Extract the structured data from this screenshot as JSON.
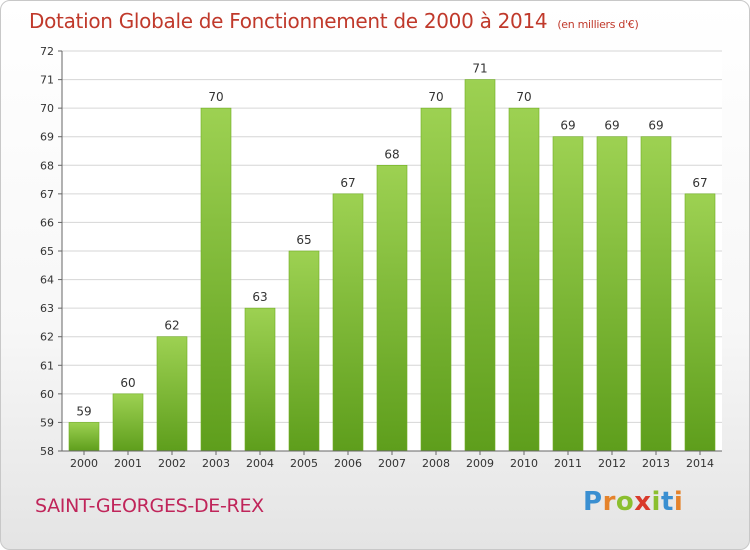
{
  "chart_data": {
    "type": "bar",
    "title": "Dotation Globale de Fonctionnement de 2000 à 2014",
    "unit": "(en milliers d'€)",
    "categories": [
      "2000",
      "2001",
      "2002",
      "2003",
      "2004",
      "2005",
      "2006",
      "2007",
      "2008",
      "2009",
      "2010",
      "2011",
      "2012",
      "2013",
      "2014"
    ],
    "values": [
      59,
      60,
      62,
      70,
      63,
      65,
      67,
      68,
      70,
      71,
      70,
      69,
      69,
      69,
      67
    ],
    "ylim": [
      58,
      72
    ],
    "yticks": [
      58,
      59,
      60,
      61,
      62,
      63,
      64,
      65,
      66,
      67,
      68,
      69,
      70,
      71,
      72
    ],
    "grid": true,
    "bar_color": "#7fbf2a",
    "xlabel": "",
    "ylabel": ""
  },
  "footer": {
    "commune": "SAINT-GEORGES-DE-REX",
    "logo": "Proxiti"
  },
  "colors": {
    "title": "#c0392b",
    "commune": "#c0255a",
    "logo_letters": [
      "#3a8fd1",
      "#e5832b",
      "#8bbf2f",
      "#d93a2b",
      "#8bbf2f",
      "#3a8fd1",
      "#e5832b"
    ]
  }
}
